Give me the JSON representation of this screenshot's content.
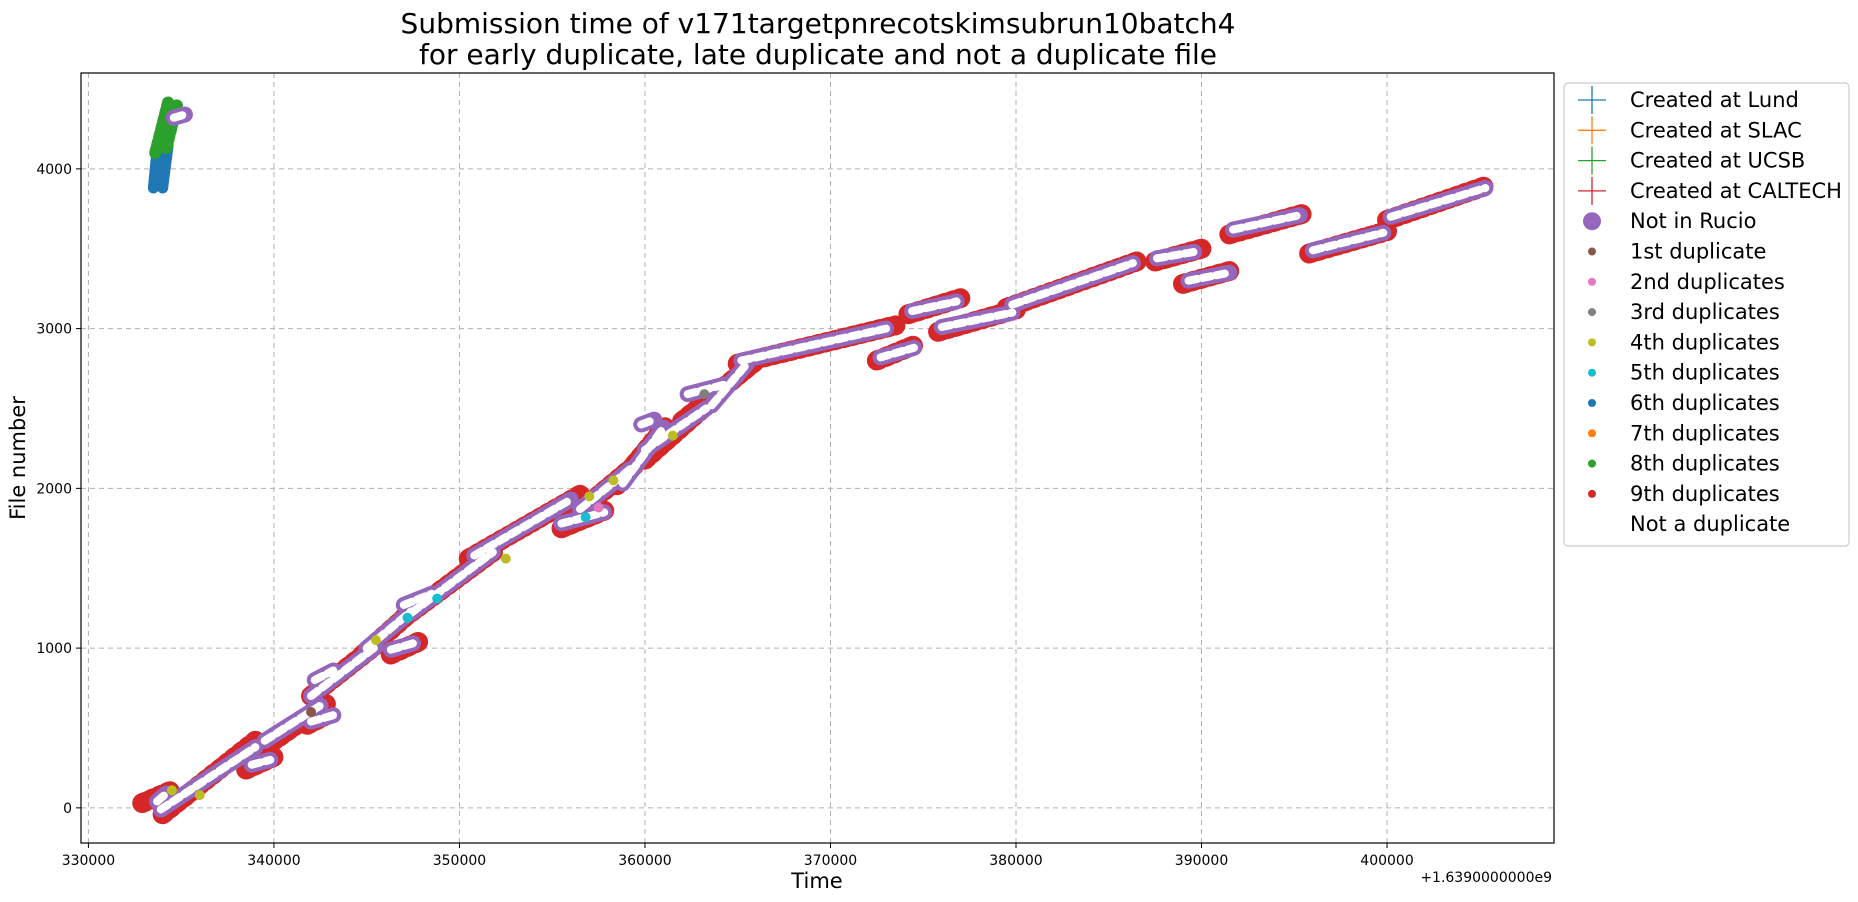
{
  "chart_data": {
    "type": "scatter",
    "title": "Submission time of v171targetpnrecotskimsubrun10batch4",
    "subtitle": "for early duplicate, late duplicate and not a duplicate file",
    "xlabel": "Time",
    "ylabel": "File number",
    "x_offset_label": "+1.6390000000e9",
    "xlim": [
      329600,
      409000
    ],
    "ylim": [
      -220,
      4600
    ],
    "xticks": [
      330000,
      340000,
      350000,
      360000,
      370000,
      380000,
      390000,
      400000
    ],
    "xtick_labels": [
      "330000",
      "340000",
      "350000",
      "360000",
      "370000",
      "380000",
      "390000",
      "400000"
    ],
    "yticks": [
      0,
      1000,
      2000,
      3000,
      4000
    ],
    "ytick_labels": [
      "0",
      "1000",
      "2000",
      "3000",
      "4000"
    ],
    "grid": true,
    "legend_placement": "outside-right-top",
    "legend": [
      {
        "label": "Created at Lund",
        "marker": "plus",
        "color": "#1f77b4"
      },
      {
        "label": "Created at SLAC",
        "marker": "plus",
        "color": "#ff7f0e"
      },
      {
        "label": "Created at UCSB",
        "marker": "plus",
        "color": "#2ca02c"
      },
      {
        "label": "Created at CALTECH",
        "marker": "plus",
        "color": "#d62728"
      },
      {
        "label": "Not in Rucio",
        "marker": "big-dot",
        "color": "#9467bd"
      },
      {
        "label": "1st duplicate",
        "marker": "dot",
        "color": "#8c564b"
      },
      {
        "label": "2nd duplicates",
        "marker": "dot",
        "color": "#e377c2"
      },
      {
        "label": "3rd duplicates",
        "marker": "dot",
        "color": "#7f7f7f"
      },
      {
        "label": "4th duplicates",
        "marker": "dot",
        "color": "#bcbd22"
      },
      {
        "label": "5th duplicates",
        "marker": "dot",
        "color": "#17becf"
      },
      {
        "label": "6th duplicates",
        "marker": "dot",
        "color": "#1f77b4"
      },
      {
        "label": "7th duplicates",
        "marker": "dot",
        "color": "#ff7f0e"
      },
      {
        "label": "8th duplicates",
        "marker": "dot",
        "color": "#2ca02c"
      },
      {
        "label": "9th duplicates",
        "marker": "dot",
        "color": "#d62728"
      },
      {
        "label": "Not a duplicate",
        "marker": "dot",
        "color": "#ffffff"
      }
    ],
    "caltech_segments": [
      {
        "x": [
          332900,
          334500
        ],
        "y": [
          30,
          110
        ]
      },
      {
        "x": [
          334000,
          339000
        ],
        "y": [
          -40,
          420
        ]
      },
      {
        "x": [
          338500,
          340200
        ],
        "y": [
          240,
          330
        ]
      },
      {
        "x": [
          339500,
          342800
        ],
        "y": [
          380,
          650
        ]
      },
      {
        "x": [
          341800,
          343000
        ],
        "y": [
          520,
          590
        ]
      },
      {
        "x": [
          342000,
          345600
        ],
        "y": [
          700,
          1030
        ]
      },
      {
        "x": [
          344800,
          347600
        ],
        "y": [
          960,
          1250
        ]
      },
      {
        "x": [
          346300,
          347800
        ],
        "y": [
          960,
          1040
        ]
      },
      {
        "x": [
          347000,
          352000
        ],
        "y": [
          1190,
          1620
        ]
      },
      {
        "x": [
          350500,
          356500
        ],
        "y": [
          1560,
          1960
        ]
      },
      {
        "x": [
          355500,
          357800
        ],
        "y": [
          1750,
          1860
        ]
      },
      {
        "x": [
          356300,
          359500
        ],
        "y": [
          1840,
          2150
        ]
      },
      {
        "x": [
          358500,
          361200
        ],
        "y": [
          2020,
          2400
        ]
      },
      {
        "x": [
          360000,
          363500
        ],
        "y": [
          2180,
          2540
        ]
      },
      {
        "x": [
          362000,
          366000
        ],
        "y": [
          2420,
          2800
        ]
      },
      {
        "x": [
          365000,
          373500
        ],
        "y": [
          2780,
          3020
        ]
      },
      {
        "x": [
          372500,
          374600
        ],
        "y": [
          2800,
          2900
        ]
      },
      {
        "x": [
          374200,
          377000
        ],
        "y": [
          3090,
          3190
        ]
      },
      {
        "x": [
          375800,
          380000
        ],
        "y": [
          2980,
          3120
        ]
      },
      {
        "x": [
          379500,
          386500
        ],
        "y": [
          3130,
          3420
        ]
      },
      {
        "x": [
          387500,
          390000
        ],
        "y": [
          3420,
          3500
        ]
      },
      {
        "x": [
          389000,
          391800
        ],
        "y": [
          3280,
          3370
        ]
      },
      {
        "x": [
          391500,
          395500
        ],
        "y": [
          3590,
          3720
        ]
      },
      {
        "x": [
          395800,
          400000
        ],
        "y": [
          3470,
          3610
        ]
      },
      {
        "x": [
          400000,
          405500
        ],
        "y": [
          3680,
          3900
        ]
      }
    ],
    "lund_segments": [
      {
        "x": [
          333500,
          333700
        ],
        "y": [
          3880,
          4120
        ]
      },
      {
        "x": [
          334000,
          334300
        ],
        "y": [
          3880,
          4150
        ]
      }
    ],
    "ucsb_segments": [
      {
        "x": [
          333600,
          334300
        ],
        "y": [
          4100,
          4420
        ]
      },
      {
        "x": [
          334200,
          334800
        ],
        "y": [
          4130,
          4410
        ]
      }
    ],
    "rucio_segments": [
      {
        "x": [
          333900,
          339000
        ],
        "y": [
          -10,
          380
        ]
      },
      {
        "x": [
          333700,
          334200
        ],
        "y": [
          40,
          90
        ]
      },
      {
        "x": [
          338800,
          339800
        ],
        "y": [
          270,
          300
        ]
      },
      {
        "x": [
          339500,
          342500
        ],
        "y": [
          420,
          640
        ]
      },
      {
        "x": [
          342000,
          343200
        ],
        "y": [
          540,
          580
        ]
      },
      {
        "x": [
          342200,
          343200
        ],
        "y": [
          800,
          860
        ]
      },
      {
        "x": [
          342000,
          345500
        ],
        "y": [
          700,
          1010
        ]
      },
      {
        "x": [
          345000,
          347400
        ],
        "y": [
          1000,
          1230
        ]
      },
      {
        "x": [
          346300,
          347500
        ],
        "y": [
          990,
          1030
        ]
      },
      {
        "x": [
          347000,
          348500
        ],
        "y": [
          1270,
          1340
        ]
      },
      {
        "x": [
          347400,
          351800
        ],
        "y": [
          1220,
          1600
        ]
      },
      {
        "x": [
          350800,
          356000
        ],
        "y": [
          1580,
          1930
        ]
      },
      {
        "x": [
          355500,
          357800
        ],
        "y": [
          1780,
          1850
        ]
      },
      {
        "x": [
          356500,
          359200
        ],
        "y": [
          1870,
          2120
        ]
      },
      {
        "x": [
          358800,
          361000
        ],
        "y": [
          2030,
          2380
        ]
      },
      {
        "x": [
          359800,
          360500
        ],
        "y": [
          2400,
          2430
        ]
      },
      {
        "x": [
          360000,
          363300
        ],
        "y": [
          2240,
          2500
        ]
      },
      {
        "x": [
          362300,
          364300
        ],
        "y": [
          2590,
          2650
        ]
      },
      {
        "x": [
          363600,
          365500
        ],
        "y": [
          2520,
          2780
        ]
      },
      {
        "x": [
          365200,
          373000
        ],
        "y": [
          2800,
          3000
        ]
      },
      {
        "x": [
          372700,
          374500
        ],
        "y": [
          2820,
          2880
        ]
      },
      {
        "x": [
          374400,
          376800
        ],
        "y": [
          3110,
          3170
        ]
      },
      {
        "x": [
          376000,
          379800
        ],
        "y": [
          3010,
          3100
        ]
      },
      {
        "x": [
          379800,
          386300
        ],
        "y": [
          3150,
          3410
        ]
      },
      {
        "x": [
          387600,
          389600
        ],
        "y": [
          3440,
          3480
        ]
      },
      {
        "x": [
          389300,
          391500
        ],
        "y": [
          3300,
          3350
        ]
      },
      {
        "x": [
          391700,
          395300
        ],
        "y": [
          3620,
          3710
        ]
      },
      {
        "x": [
          396000,
          399800
        ],
        "y": [
          3490,
          3600
        ]
      },
      {
        "x": [
          400200,
          405300
        ],
        "y": [
          3700,
          3880
        ]
      },
      {
        "x": [
          334600,
          335200
        ],
        "y": [
          4320,
          4340
        ]
      }
    ],
    "duplicate_points": [
      {
        "x": 336000,
        "y": 80,
        "color": "#bcbd22"
      },
      {
        "x": 334500,
        "y": 110,
        "color": "#bcbd22"
      },
      {
        "x": 342000,
        "y": 600,
        "color": "#8c564b"
      },
      {
        "x": 345500,
        "y": 1050,
        "color": "#bcbd22"
      },
      {
        "x": 347200,
        "y": 1190,
        "color": "#17becf"
      },
      {
        "x": 348800,
        "y": 1310,
        "color": "#17becf"
      },
      {
        "x": 352500,
        "y": 1560,
        "color": "#bcbd22"
      },
      {
        "x": 356800,
        "y": 1820,
        "color": "#17becf"
      },
      {
        "x": 357000,
        "y": 1950,
        "color": "#bcbd22"
      },
      {
        "x": 357500,
        "y": 1880,
        "color": "#e377c2"
      },
      {
        "x": 358300,
        "y": 2050,
        "color": "#bcbd22"
      },
      {
        "x": 361500,
        "y": 2330,
        "color": "#bcbd22"
      },
      {
        "x": 363200,
        "y": 2590,
        "color": "#7f7f7f"
      }
    ]
  }
}
